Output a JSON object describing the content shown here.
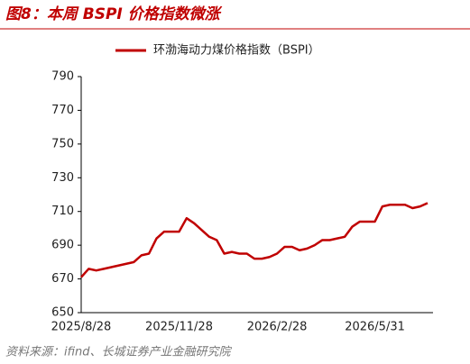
{
  "chart_data": {
    "type": "line",
    "title": "图8：本周 BSPI 价格指数微涨",
    "source": "资料来源：ifind、长城证券产业金融研究院",
    "categories": [
      "2025/8/28",
      null,
      null,
      null,
      null,
      null,
      null,
      null,
      null,
      null,
      null,
      null,
      null,
      "2025/11/28",
      null,
      null,
      null,
      null,
      null,
      null,
      null,
      null,
      null,
      null,
      null,
      null,
      "2026/2/28",
      null,
      null,
      null,
      null,
      null,
      null,
      null,
      null,
      null,
      null,
      null,
      null,
      "2026/5/31",
      null,
      null,
      null,
      null,
      null,
      null,
      null
    ],
    "series": [
      {
        "name": "环渤海动力煤价格指数（BSPI）",
        "color": "#c00000",
        "values": [
          671,
          676,
          675,
          676,
          677,
          678,
          679,
          680,
          684,
          685,
          694,
          698,
          698,
          698,
          706,
          703,
          699,
          695,
          693,
          685,
          686,
          685,
          685,
          682,
          682,
          683,
          685,
          689,
          689,
          687,
          688,
          690,
          693,
          693,
          694,
          695,
          701,
          704,
          704,
          704,
          713,
          714,
          714,
          714,
          712,
          713,
          715
        ]
      }
    ],
    "ylim": [
      650,
      790
    ],
    "yticks": [
      650,
      670,
      690,
      710,
      730,
      750,
      770,
      790
    ],
    "grid": false
  }
}
